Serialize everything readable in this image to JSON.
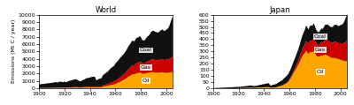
{
  "chart_data": [
    {
      "type": "area",
      "stacked": true,
      "title": "World",
      "ylabel": "Emissions (Mt C / year)",
      "x": [
        1900,
        1901,
        1902,
        1903,
        1904,
        1905,
        1906,
        1907,
        1908,
        1909,
        1910,
        1911,
        1912,
        1913,
        1914,
        1915,
        1916,
        1917,
        1918,
        1919,
        1920,
        1921,
        1922,
        1923,
        1924,
        1925,
        1926,
        1927,
        1928,
        1929,
        1930,
        1931,
        1932,
        1933,
        1934,
        1935,
        1936,
        1937,
        1938,
        1939,
        1940,
        1941,
        1942,
        1943,
        1944,
        1945,
        1946,
        1947,
        1948,
        1949,
        1950,
        1951,
        1952,
        1953,
        1954,
        1955,
        1956,
        1957,
        1958,
        1959,
        1960,
        1961,
        1962,
        1963,
        1964,
        1965,
        1966,
        1967,
        1968,
        1969,
        1970,
        1971,
        1972,
        1973,
        1974,
        1975,
        1976,
        1977,
        1978,
        1979,
        1980,
        1981,
        1982,
        1983,
        1984,
        1985,
        1986,
        1987,
        1988,
        1989,
        1990,
        1991,
        1992,
        1993,
        1994,
        1995,
        1996,
        1997,
        1998,
        1999,
        2000,
        2001,
        2002,
        2003,
        2004,
        2005
      ],
      "series": [
        {
          "name": "Oil",
          "color": "#FFA500",
          "values": [
            20,
            20,
            22,
            24,
            26,
            28,
            30,
            34,
            34,
            36,
            38,
            40,
            44,
            48,
            42,
            44,
            50,
            52,
            46,
            44,
            50,
            44,
            48,
            54,
            58,
            62,
            66,
            70,
            74,
            80,
            72,
            62,
            56,
            58,
            66,
            70,
            78,
            90,
            90,
            95,
            100,
            105,
            108,
            112,
            106,
            72,
            78,
            88,
            96,
            102,
            190,
            230,
            260,
            295,
            320,
            370,
            410,
            440,
            480,
            520,
            590,
            650,
            730,
            810,
            900,
            990,
            1080,
            1170,
            1280,
            1400,
            1540,
            1640,
            1740,
            1880,
            1880,
            1860,
            1980,
            2030,
            2060,
            2130,
            2080,
            1980,
            1960,
            1980,
            2040,
            2080,
            2080,
            2130,
            2180,
            2180,
            2180,
            2130,
            2130,
            2080,
            2100,
            2130,
            2130,
            2160,
            2080,
            2080,
            2080,
            2080,
            2100,
            2130,
            2180,
            2230
          ]
        },
        {
          "name": "Gas",
          "color": "#CC0000",
          "values": [
            5,
            5,
            6,
            6,
            7,
            7,
            8,
            9,
            9,
            10,
            12,
            12,
            15,
            18,
            14,
            18,
            26,
            26,
            22,
            26,
            36,
            34,
            40,
            46,
            52,
            58,
            62,
            68,
            76,
            82,
            78,
            70,
            64,
            66,
            76,
            82,
            92,
            106,
            106,
            112,
            122,
            132,
            136,
            140,
            130,
            90,
            100,
            110,
            120,
            130,
            150,
            180,
            200,
            228,
            244,
            278,
            308,
            338,
            368,
            398,
            438,
            478,
            528,
            578,
            628,
            668,
            718,
            768,
            848,
            928,
            1008,
            1078,
            1148,
            1218,
            1218,
            1238,
            1338,
            1368,
            1418,
            1488,
            1468,
            1408,
            1408,
            1418,
            1488,
            1548,
            1568,
            1628,
            1708,
            1728,
            1748,
            1708,
            1718,
            1688,
            1708,
            1748,
            1788,
            1808,
            1748,
            1768,
            1808,
            1828,
            1868,
            1938,
            2008,
            2068
          ]
        },
        {
          "name": "Coal",
          "color": "#111111",
          "values": [
            500,
            510,
            530,
            545,
            560,
            575,
            600,
            640,
            640,
            660,
            680,
            690,
            730,
            780,
            720,
            740,
            800,
            820,
            780,
            750,
            820,
            740,
            780,
            850,
            900,
            930,
            970,
            1020,
            1030,
            1080,
            1000,
            900,
            820,
            840,
            940,
            980,
            1060,
            1160,
            1180,
            1200,
            1250,
            1280,
            1300,
            1320,
            1280,
            900,
            980,
            1060,
            1100,
            1120,
            1380,
            1480,
            1550,
            1640,
            1680,
            1820,
            1950,
            2020,
            2100,
            2150,
            2350,
            2420,
            2480,
            2580,
            2660,
            2720,
            2770,
            2820,
            2900,
            2980,
            3100,
            3180,
            3260,
            3380,
            3320,
            3280,
            3460,
            3480,
            3420,
            3480,
            3360,
            3180,
            3120,
            3140,
            3260,
            3420,
            3480,
            3600,
            3800,
            3860,
            3900,
            3840,
            3820,
            3780,
            3840,
            3920,
            4000,
            4020,
            3960,
            3980,
            4100,
            4200,
            4400,
            4800,
            5200,
            5500
          ]
        }
      ],
      "xlim": [
        1900,
        2005
      ],
      "xticks": [
        1900,
        1920,
        1940,
        1960,
        1980,
        2000
      ],
      "ylim": [
        0,
        10000
      ],
      "yticks": [
        0,
        1000,
        2000,
        3000,
        4000,
        5000,
        6000,
        7000,
        8000,
        9000,
        10000
      ]
    },
    {
      "type": "area",
      "stacked": true,
      "title": "Japan",
      "x": [
        1900,
        1901,
        1902,
        1903,
        1904,
        1905,
        1906,
        1907,
        1908,
        1909,
        1910,
        1911,
        1912,
        1913,
        1914,
        1915,
        1916,
        1917,
        1918,
        1919,
        1920,
        1921,
        1922,
        1923,
        1924,
        1925,
        1926,
        1927,
        1928,
        1929,
        1930,
        1931,
        1932,
        1933,
        1934,
        1935,
        1936,
        1937,
        1938,
        1939,
        1940,
        1941,
        1942,
        1943,
        1944,
        1945,
        1946,
        1947,
        1948,
        1949,
        1950,
        1951,
        1952,
        1953,
        1954,
        1955,
        1956,
        1957,
        1958,
        1959,
        1960,
        1961,
        1962,
        1963,
        1964,
        1965,
        1966,
        1967,
        1968,
        1969,
        1970,
        1971,
        1972,
        1973,
        1974,
        1975,
        1976,
        1977,
        1978,
        1979,
        1980,
        1981,
        1982,
        1983,
        1984,
        1985,
        1986,
        1987,
        1988,
        1989,
        1990,
        1991,
        1992,
        1993,
        1994,
        1995,
        1996,
        1997,
        1998,
        1999,
        2000,
        2001,
        2002,
        2003,
        2004,
        2005
      ],
      "series": [
        {
          "name": "Oil",
          "color": "#FFA500",
          "values": [
            0,
            0,
            0,
            0,
            0,
            0,
            0,
            0,
            0,
            0,
            0,
            0,
            0,
            0,
            0,
            0,
            0,
            0,
            0,
            0,
            1,
            1,
            1,
            2,
            2,
            2,
            3,
            3,
            3,
            4,
            4,
            3,
            3,
            3,
            4,
            4,
            5,
            6,
            6,
            7,
            7,
            8,
            8,
            9,
            8,
            3,
            4,
            5,
            6,
            7,
            8,
            12,
            15,
            18,
            20,
            25,
            30,
            35,
            42,
            50,
            65,
            80,
            100,
            120,
            138,
            155,
            175,
            195,
            215,
            240,
            260,
            275,
            285,
            305,
            290,
            278,
            295,
            295,
            295,
            305,
            285,
            268,
            258,
            255,
            262,
            268,
            265,
            270,
            275,
            270,
            265,
            260,
            252,
            248,
            245,
            248,
            245,
            242,
            238,
            235,
            232,
            228,
            225,
            222,
            220,
            218
          ]
        },
        {
          "name": "Gas",
          "color": "#CC0000",
          "values": [
            0,
            0,
            0,
            0,
            0,
            0,
            0,
            0,
            0,
            0,
            0,
            0,
            0,
            0,
            0,
            0,
            0,
            0,
            0,
            0,
            0,
            0,
            0,
            0,
            0,
            0,
            0,
            0,
            0,
            0,
            0,
            0,
            0,
            0,
            0,
            0,
            0,
            0,
            0,
            0,
            0,
            0,
            0,
            0,
            0,
            0,
            0,
            0,
            0,
            0,
            1,
            1,
            1,
            2,
            2,
            3,
            4,
            5,
            6,
            8,
            10,
            12,
            15,
            18,
            22,
            26,
            30,
            35,
            42,
            50,
            58,
            64,
            72,
            80,
            82,
            84,
            90,
            92,
            96,
            102,
            100,
            98,
            96,
            98,
            102,
            108,
            108,
            114,
            120,
            122,
            125,
            122,
            122,
            122,
            124,
            130,
            132,
            134,
            130,
            132,
            136,
            138,
            142,
            148,
            158,
            168
          ]
        },
        {
          "name": "Coal",
          "color": "#111111",
          "values": [
            2,
            2,
            2,
            3,
            3,
            3,
            4,
            5,
            5,
            5,
            6,
            6,
            7,
            8,
            7,
            8,
            9,
            10,
            10,
            10,
            11,
            10,
            11,
            12,
            13,
            14,
            15,
            16,
            17,
            18,
            17,
            16,
            15,
            15,
            17,
            18,
            20,
            22,
            22,
            25,
            26,
            28,
            30,
            32,
            30,
            18,
            20,
            23,
            24,
            26,
            28,
            32,
            35,
            38,
            40,
            45,
            50,
            52,
            55,
            58,
            62,
            65,
            70,
            75,
            80,
            84,
            88,
            92,
            98,
            104,
            110,
            115,
            120,
            128,
            122,
            118,
            124,
            124,
            120,
            124,
            118,
            110,
            106,
            104,
            108,
            112,
            110,
            116,
            124,
            126,
            130,
            128,
            128,
            128,
            132,
            138,
            140,
            142,
            140,
            142,
            148,
            152,
            160,
            176,
            195,
            210
          ]
        }
      ],
      "xlim": [
        1900,
        2005
      ],
      "xticks": [
        1900,
        1920,
        1940,
        1960,
        1980,
        2000
      ],
      "ylim": [
        0,
        600
      ],
      "yticks": [
        0,
        50,
        100,
        150,
        200,
        250,
        300,
        350,
        400,
        450,
        500,
        550,
        600
      ]
    }
  ]
}
